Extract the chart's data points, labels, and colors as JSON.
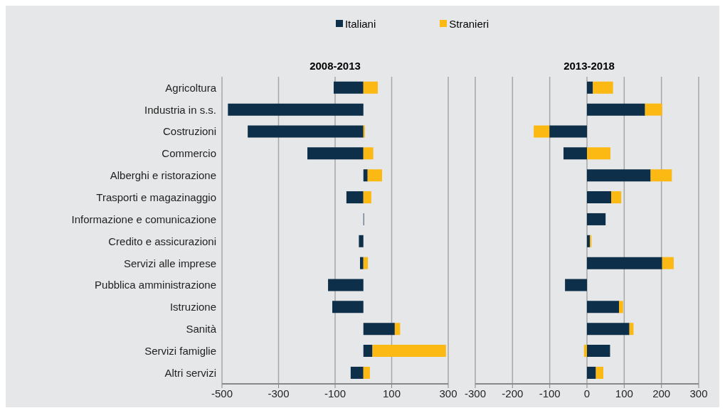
{
  "chart_data": [
    {
      "type": "bar",
      "title": "2008-2013",
      "orientation": "horizontal",
      "stacked": true,
      "legend": "top",
      "grid": "x",
      "categories": [
        "Agricoltura",
        "Industria in s.s.",
        "Costruzioni",
        "Commercio",
        "Alberghi e ristorazione",
        "Trasporti e magazinaggio",
        "Informazione e comunicazione",
        "Credito e assicurazioni",
        "Servizi alle imprese",
        "Pubblica amministrazione",
        "Istruzione",
        "Sanità",
        "Servizi famiglie",
        "Altri servizi"
      ],
      "series": [
        {
          "name": "Italiani",
          "color": "#0d2f4a",
          "values": [
            -105,
            -479,
            -409,
            -198,
            15,
            -60,
            2,
            -16,
            -12,
            -125,
            -110,
            111,
            32,
            -45
          ]
        },
        {
          "name": "Stranieri",
          "color": "#fcb813",
          "values": [
            51,
            0,
            5,
            35,
            51,
            28,
            0,
            0,
            16,
            0,
            0,
            19,
            260,
            23
          ]
        }
      ],
      "xlim": [
        -500,
        300
      ],
      "xticks": [
        -500,
        -300,
        -100,
        100,
        300
      ]
    },
    {
      "type": "bar",
      "title": "2013-2018",
      "orientation": "horizontal",
      "stacked": true,
      "grid": "x",
      "tick_labels": "x",
      "categories": [
        null,
        null,
        null,
        null,
        null,
        null,
        null,
        null,
        null,
        null,
        null,
        null,
        null,
        null
      ],
      "series": [
        {
          "color": "#0d2f4a",
          "values": [
            16,
            156,
            -101,
            -63,
            171,
            65,
            50,
            8,
            202,
            -59,
            86,
            114,
            62,
            24
          ]
        },
        {
          "color": "#fcb813",
          "values": [
            54,
            46,
            -42,
            63,
            57,
            27,
            0,
            4,
            31,
            0,
            11,
            11,
            -8,
            20
          ]
        }
      ],
      "xlim": [
        -300,
        300
      ],
      "xticks": [
        -300,
        -200,
        -100,
        0,
        100,
        200,
        300
      ]
    }
  ]
}
